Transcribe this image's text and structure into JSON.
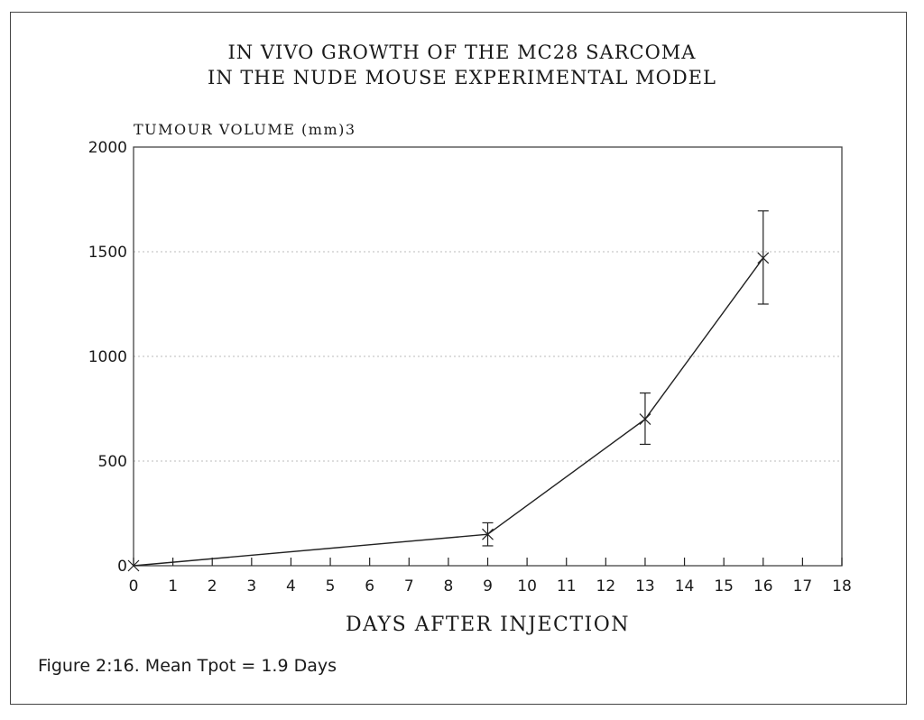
{
  "chart_data": {
    "type": "line",
    "title": [
      "IN VIVO GROWTH OF THE MC28 SARCOMA",
      "IN THE NUDE MOUSE EXPERIMENTAL MODEL"
    ],
    "ylabel": "TUMOUR VOLUME (mm)3",
    "xlabel": "DAYS AFTER INJECTION",
    "caption": "Figure 2:16. Mean Tpot = 1.9 Days",
    "xlim": [
      0,
      18
    ],
    "ylim": [
      0,
      2000
    ],
    "xticks": [
      "0",
      "1",
      "2",
      "3",
      "4",
      "5",
      "6",
      "7",
      "8",
      "9",
      "10",
      "11",
      "12",
      "13",
      "14",
      "15",
      "16",
      "17",
      "18"
    ],
    "yticks": [
      "0",
      "500",
      "1000",
      "1500",
      "2000"
    ],
    "grid": "horizontal dotted",
    "series": [
      {
        "name": "Tumour volume",
        "x": [
          0,
          9,
          13,
          16
        ],
        "y": [
          0,
          150,
          700,
          1470
        ],
        "error_low": [
          0,
          95,
          580,
          1250
        ],
        "error_high": [
          0,
          205,
          825,
          1695
        ],
        "marker": "x"
      }
    ],
    "colors": {
      "line": "#222222",
      "grid": "#bbbbbb",
      "frame": "#444444"
    }
  }
}
